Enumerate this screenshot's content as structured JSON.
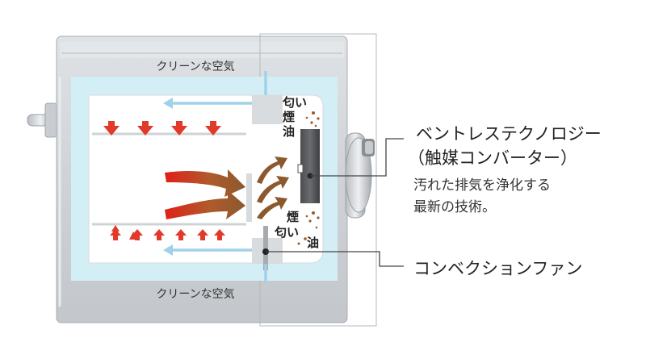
{
  "labels": {
    "clean_air_top": "クリーンな空気",
    "clean_air_bottom": "クリーンな空気",
    "odor_top": "匂い",
    "smoke_top": "煙",
    "oil_top": "油",
    "smoke_bottom": "煙",
    "odor_bottom": "匂い",
    "oil_bottom": "油"
  },
  "callouts": {
    "vent_title_1": "ベントレステクノロジー",
    "vent_title_2": "（触媒コンバーター）",
    "vent_desc_1": "汚れた排気を浄化する",
    "vent_desc_2": "最新の技術。",
    "fan_label": "コンベクションファン"
  }
}
